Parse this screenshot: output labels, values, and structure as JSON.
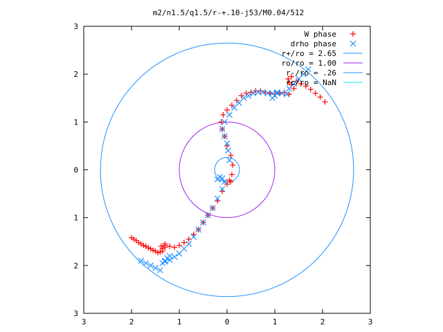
{
  "chart_data": {
    "type": "scatter",
    "title": "m2/n1.5/q1.5/r-+.10-j53/M0.04/512",
    "xlabel": "",
    "ylabel": "",
    "xlim": [
      -3,
      3
    ],
    "ylim": [
      -3,
      3
    ],
    "x_tick_labels": [
      "3",
      "2",
      "1",
      "0",
      "1",
      "2",
      "3"
    ],
    "y_tick_labels": [
      "3",
      "2",
      "1",
      "0",
      "1",
      "2",
      "3"
    ],
    "legend_position": "top-right",
    "series": [
      {
        "name": "W phase",
        "kind": "points",
        "marker": "+",
        "color": "#ff0000",
        "x": [
          -2.0,
          -1.9,
          -1.8,
          -1.7,
          -1.6,
          -1.5,
          -1.4,
          -1.35,
          -1.3,
          -1.3,
          -1.35,
          -1.38,
          -1.3,
          -1.2,
          -1.1,
          -1.0,
          -0.9,
          -0.8,
          -0.7,
          -0.6,
          -0.5,
          -0.4,
          -0.3,
          -0.2,
          -0.1,
          0.0,
          0.05,
          0.08,
          0.1,
          0.12,
          0.08,
          0.0,
          -0.05,
          -0.1,
          -0.12,
          -0.08,
          0.0,
          0.1,
          0.2,
          0.3,
          0.4,
          0.5,
          0.6,
          0.7,
          0.8,
          0.9,
          1.0,
          1.1,
          1.2,
          1.3,
          1.4,
          1.35,
          1.3,
          1.28,
          1.35,
          1.45,
          1.55,
          1.65,
          1.75,
          1.85,
          1.95,
          2.05,
          -1.95,
          -1.85,
          -1.75,
          -1.65,
          -1.55,
          -1.45
        ],
        "y": [
          -1.42,
          -1.48,
          -1.55,
          -1.6,
          -1.65,
          -1.7,
          -1.72,
          -1.65,
          -1.55,
          -1.62,
          -1.7,
          -1.6,
          -1.58,
          -1.6,
          -1.62,
          -1.58,
          -1.52,
          -1.45,
          -1.35,
          -1.25,
          -1.1,
          -0.95,
          -0.8,
          -0.65,
          -0.45,
          -0.3,
          -0.22,
          -0.25,
          -0.1,
          0.1,
          0.3,
          0.5,
          0.7,
          0.85,
          1.0,
          1.15,
          1.25,
          1.35,
          1.45,
          1.55,
          1.6,
          1.62,
          1.65,
          1.65,
          1.62,
          1.6,
          1.58,
          1.6,
          1.62,
          1.58,
          1.7,
          1.78,
          1.82,
          1.9,
          1.95,
          1.85,
          1.8,
          1.75,
          1.68,
          1.6,
          1.52,
          1.42,
          -1.45,
          -1.52,
          -1.58,
          -1.63,
          -1.68,
          -1.73
        ]
      },
      {
        "name": "drho phase",
        "kind": "points",
        "marker": "x",
        "color": "#1e90ff",
        "x": [
          -1.8,
          -1.7,
          -1.6,
          -1.5,
          -1.4,
          -1.35,
          -1.3,
          -1.25,
          -1.2,
          -1.3,
          -1.2,
          -1.1,
          -1.0,
          -0.9,
          -0.8,
          -0.7,
          -0.6,
          -0.5,
          -0.4,
          -0.3,
          -0.2,
          -0.1,
          -0.05,
          -0.1,
          -0.15,
          -0.2,
          0.05,
          0.02,
          0.0,
          -0.05,
          -0.1,
          -0.05,
          0.05,
          0.15,
          0.25,
          0.35,
          0.45,
          0.55,
          0.65,
          0.75,
          0.85,
          0.95,
          1.05,
          1.15,
          1.25,
          1.3,
          1.4,
          1.5,
          1.6,
          1.7,
          1.05,
          1.0,
          0.95
        ],
        "y": [
          -1.9,
          -1.95,
          -2.0,
          -2.05,
          -2.1,
          -1.95,
          -1.9,
          -1.85,
          -1.8,
          -1.92,
          -1.88,
          -1.82,
          -1.75,
          -1.65,
          -1.55,
          -1.4,
          -1.25,
          -1.1,
          -0.95,
          -0.8,
          -0.6,
          -0.4,
          -0.25,
          -0.18,
          -0.15,
          -0.2,
          0.2,
          0.4,
          0.55,
          0.7,
          0.85,
          1.0,
          1.15,
          1.3,
          1.4,
          1.5,
          1.55,
          1.6,
          1.62,
          1.62,
          1.6,
          1.6,
          1.62,
          1.6,
          1.58,
          1.7,
          1.8,
          1.9,
          2.0,
          2.1,
          1.6,
          1.55,
          1.5
        ]
      },
      {
        "name": "r+/ro = 2.65",
        "kind": "circle",
        "color": "#1e90ff",
        "radius": 2.65
      },
      {
        "name": "ro/ro = 1.00",
        "kind": "circle",
        "color": "#a020f0",
        "radius": 1.0
      },
      {
        "name": "r-/ro = .26",
        "kind": "circle",
        "color": "#1e90ff",
        "radius": 0.26
      },
      {
        "name": "rc/ro = NaN",
        "kind": "circle",
        "color": "#00e5ee",
        "radius": null
      }
    ]
  }
}
